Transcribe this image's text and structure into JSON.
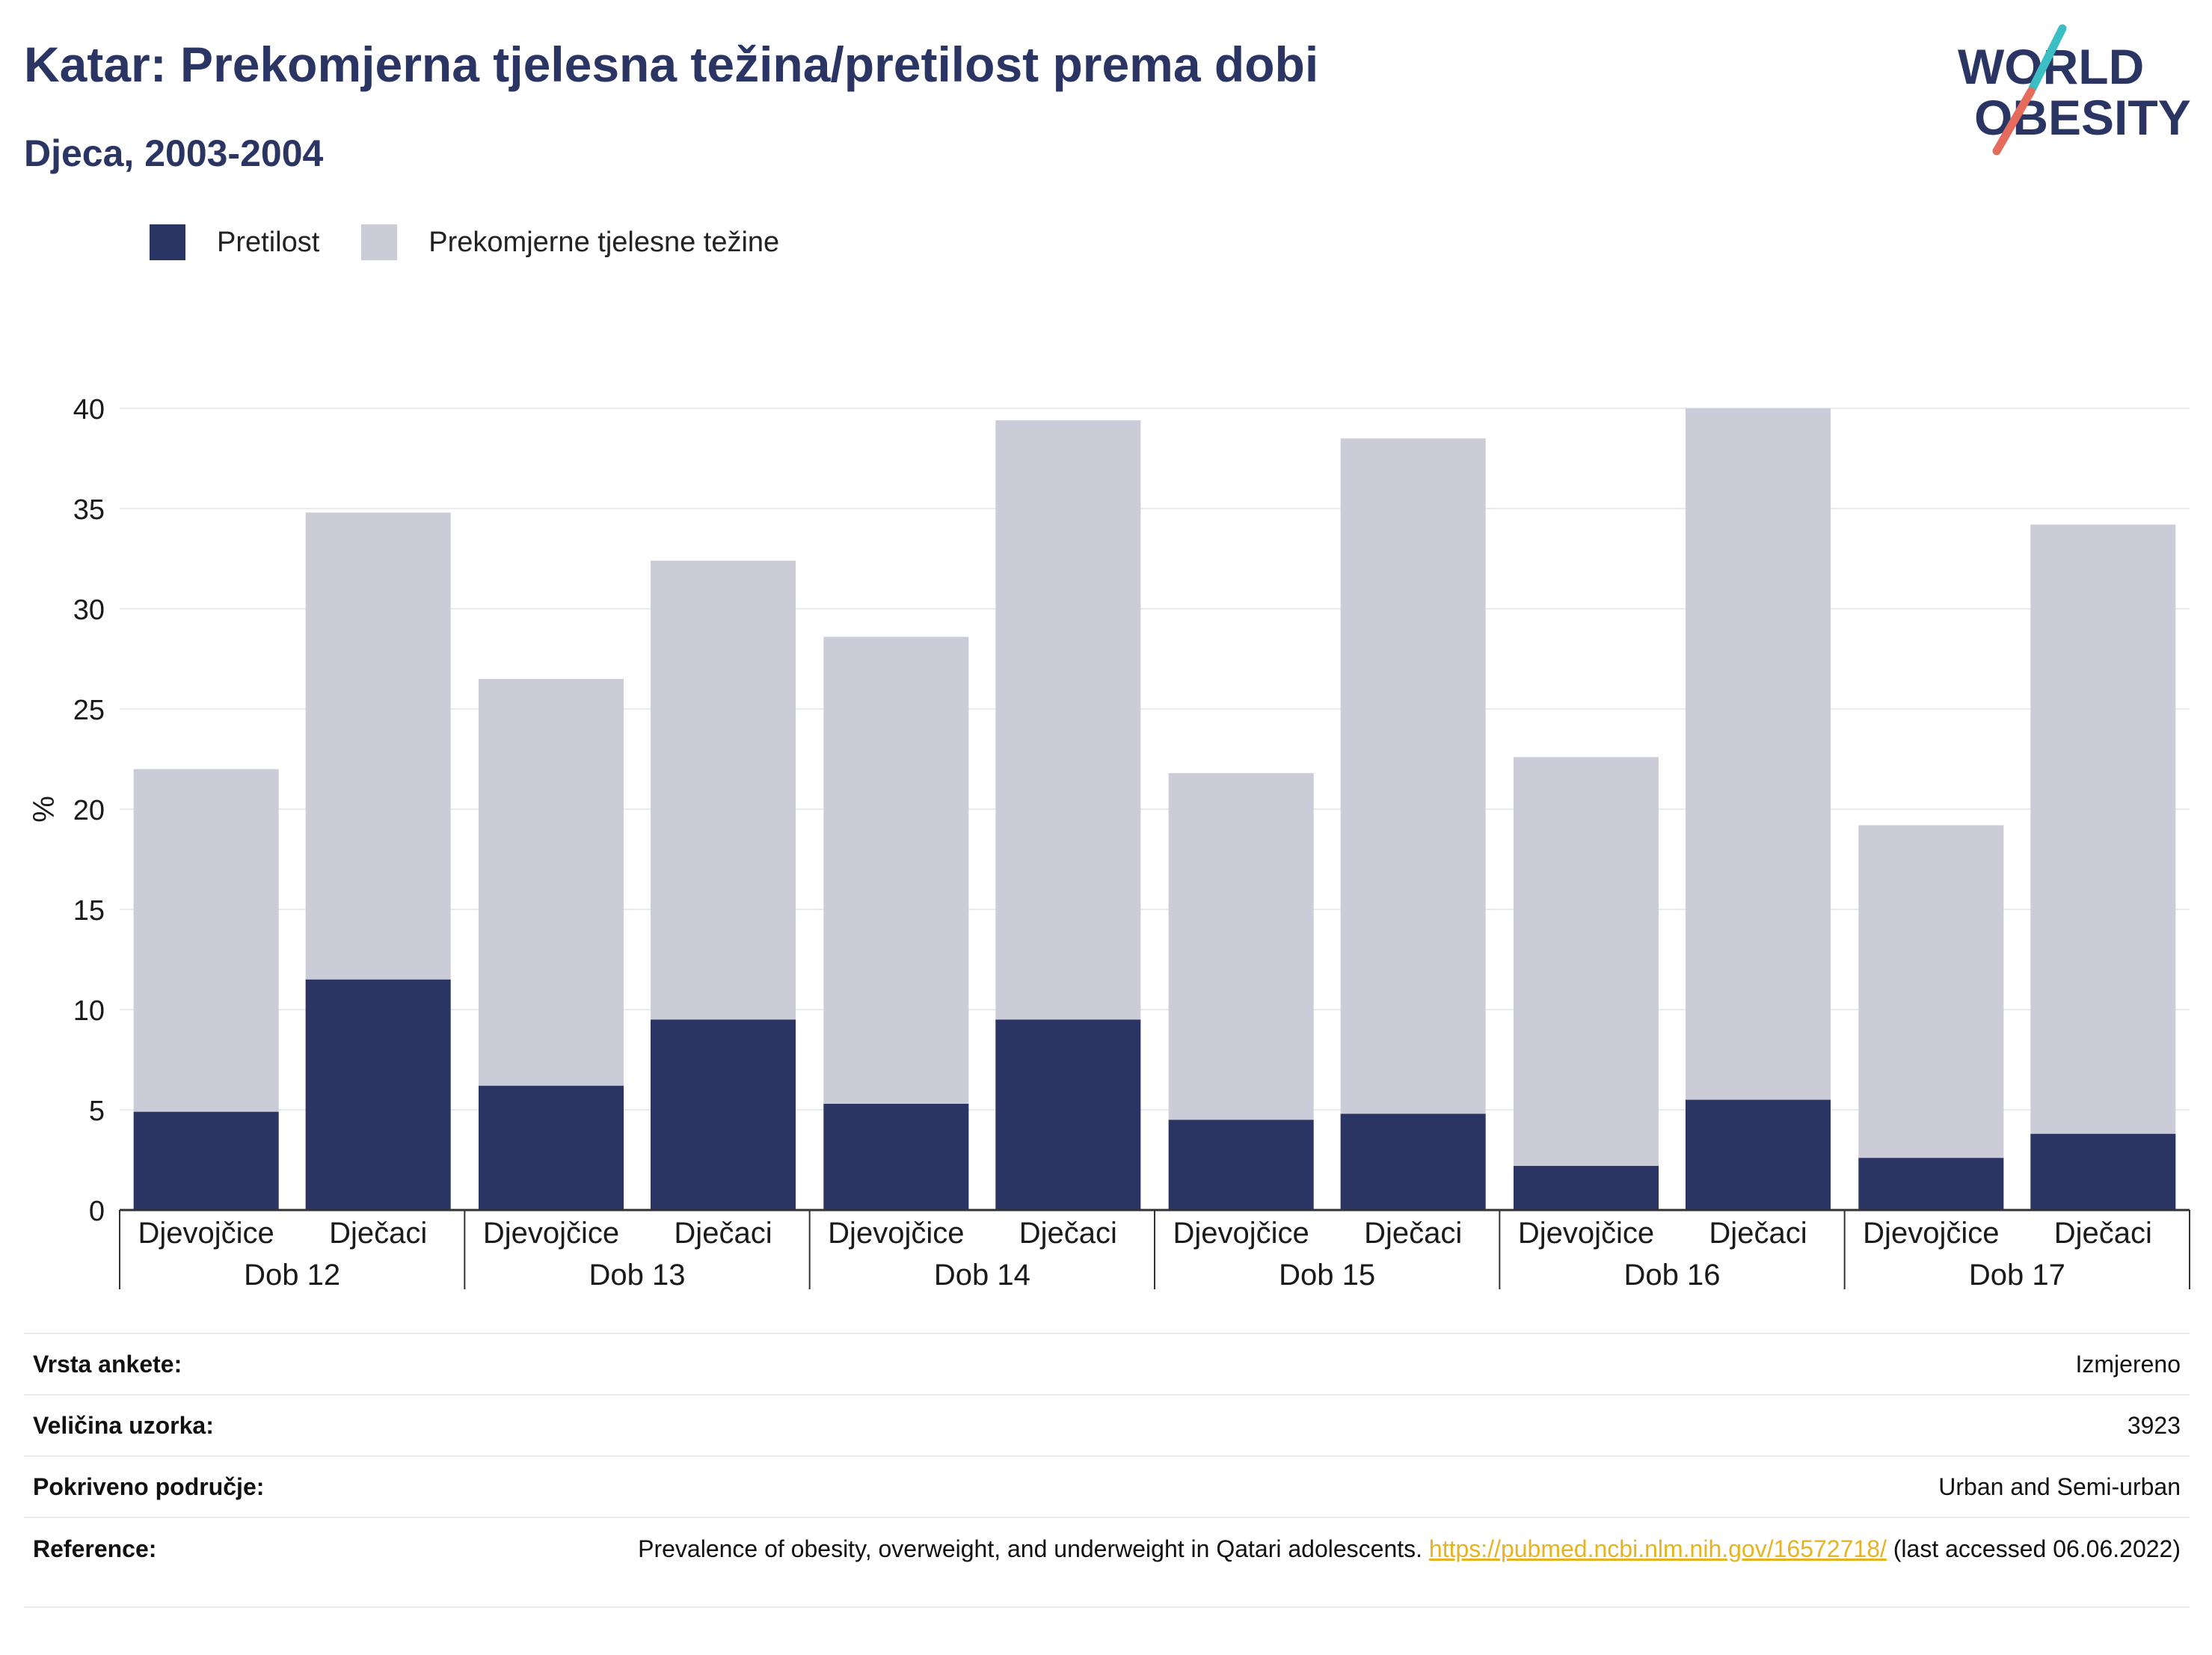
{
  "header": {
    "title": "Katar: Prekomjerna tjelesna težina/pretilost prema dobi",
    "subtitle": "Djeca, 2003-2004"
  },
  "logo": {
    "line1": "WORLD",
    "line2": "OBESITY",
    "colors": {
      "text": "#2a3563",
      "slash_top": "#3bbfc4",
      "slash_bottom": "#e56b5d"
    }
  },
  "legend": {
    "items": [
      {
        "label": "Pretilost",
        "color": "#2a3563"
      },
      {
        "label": "Prekomjerne tjelesne težine",
        "color": "#cbccd8"
      }
    ]
  },
  "chart_data": {
    "type": "bar",
    "stacked": true,
    "ylabel": "%",
    "ylim": [
      0,
      40
    ],
    "yticks": [
      0,
      5,
      10,
      15,
      20,
      25,
      30,
      35,
      40
    ],
    "grid": true,
    "legend_position": "top-left",
    "groups": [
      {
        "label": "Dob 12",
        "bars": [
          {
            "label": "Djevojčice",
            "pretilost": 4.9,
            "prekomjerne": 17.1
          },
          {
            "label": "Dječaci",
            "pretilost": 11.5,
            "prekomjerne": 23.3
          }
        ]
      },
      {
        "label": "Dob 13",
        "bars": [
          {
            "label": "Djevojčice",
            "pretilost": 6.2,
            "prekomjerne": 20.3
          },
          {
            "label": "Dječaci",
            "pretilost": 9.5,
            "prekomjerne": 22.9
          }
        ]
      },
      {
        "label": "Dob 14",
        "bars": [
          {
            "label": "Djevojčice",
            "pretilost": 5.3,
            "prekomjerne": 23.3
          },
          {
            "label": "Dječaci",
            "pretilost": 9.5,
            "prekomjerne": 29.9
          }
        ]
      },
      {
        "label": "Dob 15",
        "bars": [
          {
            "label": "Djevojčice",
            "pretilost": 4.5,
            "prekomjerne": 17.3
          },
          {
            "label": "Dječaci",
            "pretilost": 4.8,
            "prekomjerne": 33.7
          }
        ]
      },
      {
        "label": "Dob 16",
        "bars": [
          {
            "label": "Djevojčice",
            "pretilost": 2.2,
            "prekomjerne": 20.4
          },
          {
            "label": "Dječaci",
            "pretilost": 5.5,
            "prekomjerne": 34.5
          }
        ]
      },
      {
        "label": "Dob 17",
        "bars": [
          {
            "label": "Djevojčice",
            "pretilost": 2.6,
            "prekomjerne": 16.6
          },
          {
            "label": "Dječaci",
            "pretilost": 3.8,
            "prekomjerne": 30.4
          }
        ]
      }
    ],
    "colors": {
      "pretilost": "#2a3563",
      "prekomjerne": "#cbccd8"
    }
  },
  "info": {
    "survey_type": {
      "label": "Vrsta ankete:",
      "value": "Izmjereno"
    },
    "sample_size": {
      "label": "Veličina uzorka:",
      "value": "3923"
    },
    "area": {
      "label": "Pokriveno područje:",
      "value": "Urban and Semi-urban"
    },
    "reference": {
      "label": "Reference:",
      "text_before": "Prevalence of obesity, overweight, and underweight in Qatari adolescents.",
      "link": "https://pubmed.ncbi.nlm.nih.gov/16572718/",
      "text_after": "(last accessed 06.06.2022)"
    }
  }
}
